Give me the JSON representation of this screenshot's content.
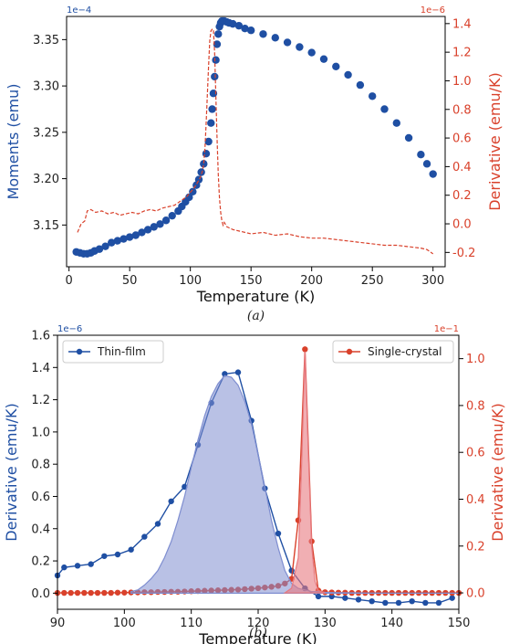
{
  "colors": {
    "blue": "#1f4fa3",
    "red": "#d9412b",
    "fill_blue": "#7f8ed0",
    "fill_red": "#e77a80",
    "axis": "#000000"
  },
  "chart_data": [
    {
      "panel": "a",
      "caption": "(a)",
      "type": "scatter",
      "xlabel": "Temperature (K)",
      "ylabel_left": "Moments (emu)",
      "ylabel_right": "Derivative (emu/K)",
      "left_exponent": "1e−4",
      "right_exponent": "1e−6",
      "xlim": [
        -2,
        310
      ],
      "ylim_left": [
        3.105,
        3.375
      ],
      "ylim_right": [
        -0.3,
        1.45
      ],
      "x_ticks": [
        "0",
        "50",
        "100",
        "150",
        "200",
        "250",
        "300"
      ],
      "y_ticks_left": [
        "3.15",
        "3.20",
        "3.25",
        "3.30",
        "3.35"
      ],
      "y_ticks_right": [
        "-0.2",
        "0.0",
        "0.2",
        "0.4",
        "0.6",
        "0.8",
        "1.0",
        "1.2",
        "1.4"
      ],
      "series": [
        {
          "axis": "left",
          "style": "markers",
          "x": [
            6,
            9,
            12,
            15,
            18,
            21,
            25,
            30,
            35,
            40,
            45,
            50,
            55,
            60,
            65,
            70,
            75,
            80,
            85,
            90,
            93,
            96,
            99,
            102,
            105,
            107,
            109,
            111,
            113,
            115,
            117,
            118,
            119,
            120,
            121,
            122,
            123,
            124,
            125,
            126,
            127,
            128,
            130,
            132,
            135,
            140,
            145,
            150,
            160,
            170,
            180,
            190,
            200,
            210,
            220,
            230,
            240,
            250,
            260,
            270,
            280,
            290,
            295,
            300
          ],
          "y": [
            3.121,
            3.12,
            3.119,
            3.119,
            3.12,
            3.122,
            3.124,
            3.127,
            3.131,
            3.133,
            3.135,
            3.137,
            3.139,
            3.142,
            3.145,
            3.148,
            3.151,
            3.155,
            3.16,
            3.165,
            3.17,
            3.175,
            3.18,
            3.186,
            3.193,
            3.199,
            3.207,
            3.216,
            3.227,
            3.24,
            3.26,
            3.275,
            3.292,
            3.31,
            3.328,
            3.345,
            3.356,
            3.364,
            3.368,
            3.37,
            3.37,
            3.37,
            3.369,
            3.368,
            3.367,
            3.365,
            3.362,
            3.36,
            3.356,
            3.352,
            3.347,
            3.342,
            3.336,
            3.329,
            3.321,
            3.312,
            3.301,
            3.289,
            3.275,
            3.26,
            3.244,
            3.226,
            3.216,
            3.205
          ]
        },
        {
          "axis": "right",
          "style": "dashed-line",
          "x": [
            7,
            10,
            13,
            15,
            18,
            22,
            27,
            32,
            37,
            42,
            47,
            52,
            57,
            62,
            67,
            72,
            77,
            82,
            87,
            92,
            97,
            100,
            103,
            106,
            108,
            110,
            111,
            112,
            113,
            114,
            115,
            116,
            117,
            118,
            119,
            120,
            121,
            122,
            123,
            124,
            125,
            126,
            127,
            128,
            130,
            135,
            140,
            150,
            160,
            170,
            180,
            190,
            200,
            210,
            220,
            230,
            240,
            250,
            260,
            270,
            280,
            290,
            295,
            300
          ],
          "y": [
            -0.06,
            0.0,
            0.02,
            0.09,
            0.1,
            0.08,
            0.09,
            0.07,
            0.08,
            0.06,
            0.07,
            0.08,
            0.07,
            0.09,
            0.1,
            0.09,
            0.11,
            0.12,
            0.13,
            0.16,
            0.19,
            0.22,
            0.25,
            0.29,
            0.32,
            0.37,
            0.42,
            0.52,
            0.7,
            0.9,
            1.1,
            1.28,
            1.35,
            1.36,
            1.36,
            1.2,
            0.9,
            0.6,
            0.35,
            0.18,
            0.08,
            0.02,
            -0.01,
            0.01,
            -0.02,
            -0.04,
            -0.05,
            -0.07,
            -0.06,
            -0.08,
            -0.07,
            -0.09,
            -0.1,
            -0.1,
            -0.11,
            -0.12,
            -0.13,
            -0.14,
            -0.15,
            -0.15,
            -0.16,
            -0.17,
            -0.18,
            -0.21
          ]
        }
      ]
    },
    {
      "panel": "b",
      "caption": "(b)",
      "type": "line",
      "xlabel": "Temperature (K)",
      "ylabel_left": "Derivative (emu/K)",
      "ylabel_right": "Derivative (emu/K)",
      "left_exponent": "1e−6",
      "right_exponent": "1e−1",
      "xlim": [
        90,
        150
      ],
      "ylim_left": [
        -0.1,
        1.6
      ],
      "ylim_right": [
        -0.07,
        1.1
      ],
      "x_ticks": [
        "90",
        "100",
        "110",
        "120",
        "130",
        "140",
        "150"
      ],
      "y_ticks_left": [
        "0.0",
        "0.2",
        "0.4",
        "0.6",
        "0.8",
        "1.0",
        "1.2",
        "1.4",
        "1.6"
      ],
      "y_ticks_right": [
        "0.0",
        "0.2",
        "0.4",
        "0.6",
        "0.8",
        "1.0"
      ],
      "legend_left": "Thin-film",
      "legend_right": "Single-crystal",
      "series": [
        {
          "name": "Thin-film",
          "axis": "left",
          "style": "line-markers",
          "x": [
            90,
            91,
            93,
            95,
            97,
            99,
            101,
            103,
            105,
            107,
            109,
            111,
            113,
            115,
            117,
            119,
            121,
            123,
            125,
            127,
            129,
            131,
            133,
            135,
            137,
            139,
            141,
            143,
            145,
            147,
            149
          ],
          "y": [
            0.11,
            0.16,
            0.17,
            0.18,
            0.23,
            0.24,
            0.27,
            0.35,
            0.43,
            0.57,
            0.66,
            0.92,
            1.18,
            1.36,
            1.37,
            1.07,
            0.65,
            0.37,
            0.14,
            0.03,
            -0.02,
            -0.02,
            -0.03,
            -0.04,
            -0.05,
            -0.06,
            -0.06,
            -0.05,
            -0.06,
            -0.06,
            -0.03
          ]
        },
        {
          "name": "Single-crystal",
          "axis": "right",
          "style": "line-markers",
          "x": [
            90,
            91,
            92,
            93,
            94,
            95,
            96,
            97,
            98,
            99,
            100,
            101,
            102,
            103,
            104,
            105,
            106,
            107,
            108,
            109,
            110,
            111,
            112,
            113,
            114,
            115,
            116,
            117,
            118,
            119,
            120,
            121,
            122,
            123,
            124,
            125,
            126,
            127,
            128,
            129,
            130,
            131,
            132,
            133,
            134,
            135,
            136,
            137,
            138,
            139,
            140,
            141,
            142,
            143,
            144,
            145,
            146,
            147,
            148,
            149,
            150
          ],
          "y": [
            0,
            0,
            0,
            0,
            0,
            0,
            0,
            0,
            0,
            0.001,
            0.001,
            0.002,
            0.002,
            0.003,
            0.003,
            0.004,
            0.004,
            0.005,
            0.005,
            0.006,
            0.007,
            0.008,
            0.009,
            0.01,
            0.011,
            0.012,
            0.013,
            0.014,
            0.016,
            0.018,
            0.02,
            0.023,
            0.026,
            0.03,
            0.04,
            0.06,
            0.31,
            1.04,
            0.22,
            0.01,
            0.003,
            0.002,
            0.001,
            0.001,
            0,
            0,
            0,
            0,
            0,
            0,
            0,
            0,
            0,
            0,
            0,
            0,
            0,
            0,
            0,
            0,
            0
          ]
        },
        {
          "name": "",
          "axis": "left",
          "style": "filled-area",
          "x": [
            101,
            102,
            103,
            104,
            105,
            106,
            107,
            108,
            109,
            110,
            111,
            112,
            113,
            114,
            115,
            116,
            117,
            118,
            119,
            120,
            121,
            122,
            123,
            124,
            125,
            126,
            127,
            128,
            129,
            130,
            132,
            134,
            136,
            140,
            150
          ],
          "y": [
            0.01,
            0.02,
            0.05,
            0.09,
            0.14,
            0.22,
            0.32,
            0.45,
            0.6,
            0.78,
            0.95,
            1.1,
            1.22,
            1.3,
            1.35,
            1.34,
            1.29,
            1.19,
            1.05,
            0.86,
            0.66,
            0.45,
            0.28,
            0.14,
            0.06,
            0.03,
            0.02,
            0.01,
            0.01,
            0.005,
            0.003,
            0.002,
            0.001,
            0,
            0
          ]
        },
        {
          "name": "",
          "axis": "right",
          "style": "filled-area",
          "x": [
            124,
            125,
            126,
            126.5,
            127,
            127.5,
            128,
            128.5,
            129,
            130
          ],
          "y": [
            0,
            0.02,
            0.15,
            0.55,
            1.03,
            0.6,
            0.2,
            0.05,
            0.01,
            0
          ]
        }
      ]
    }
  ]
}
